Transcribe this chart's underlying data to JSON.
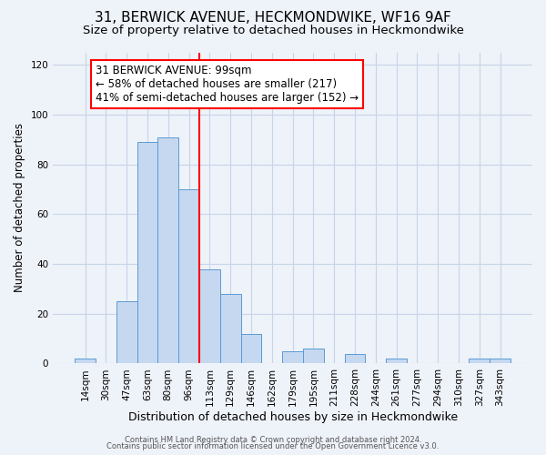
{
  "title": "31, BERWICK AVENUE, HECKMONDWIKE, WF16 9AF",
  "subtitle": "Size of property relative to detached houses in Heckmondwike",
  "xlabel": "Distribution of detached houses by size in Heckmondwike",
  "ylabel": "Number of detached properties",
  "footer_line1": "Contains HM Land Registry data © Crown copyright and database right 2024.",
  "footer_line2": "Contains public sector information licensed under the Open Government Licence v3.0.",
  "categories": [
    "14sqm",
    "30sqm",
    "47sqm",
    "63sqm",
    "80sqm",
    "96sqm",
    "113sqm",
    "129sqm",
    "146sqm",
    "162sqm",
    "179sqm",
    "195sqm",
    "211sqm",
    "228sqm",
    "244sqm",
    "261sqm",
    "277sqm",
    "294sqm",
    "310sqm",
    "327sqm",
    "343sqm"
  ],
  "values": [
    2,
    0,
    25,
    89,
    91,
    70,
    38,
    28,
    12,
    0,
    5,
    6,
    0,
    4,
    0,
    2,
    0,
    0,
    0,
    2,
    2
  ],
  "bar_color": "#c5d8f0",
  "bar_edge_color": "#5b9bd5",
  "bar_width": 1.0,
  "ref_line_index": 5.5,
  "reference_line_color": "red",
  "annotation_title": "31 BERWICK AVENUE: 99sqm",
  "annotation_line1": "← 58% of detached houses are smaller (217)",
  "annotation_line2": "41% of semi-detached houses are larger (152) →",
  "annotation_box_color": "white",
  "annotation_box_edge_color": "red",
  "ylim": [
    0,
    125
  ],
  "yticks": [
    0,
    20,
    40,
    60,
    80,
    100,
    120
  ],
  "background_color": "#eef2f9",
  "plot_background_color": "#eef2f9",
  "grid_color": "#c8d4e8",
  "title_fontsize": 11,
  "subtitle_fontsize": 9.5,
  "xlabel_fontsize": 9,
  "ylabel_fontsize": 8.5,
  "tick_fontsize": 7.5,
  "annotation_fontsize": 8.5
}
